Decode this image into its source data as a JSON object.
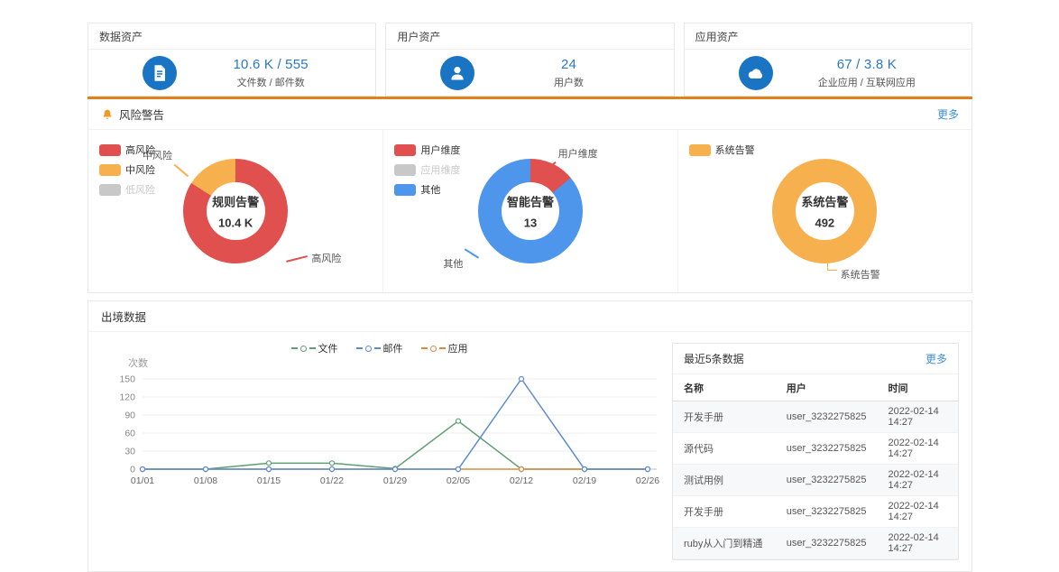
{
  "colors": {
    "accent_blue": "#1a74c4",
    "value_blue": "#2a78c0",
    "link_blue": "#3d8fd4",
    "separator_orange": "#e2801a",
    "bell_orange": "#f39826",
    "risk_red": "#e0504e",
    "risk_orange": "#f6b04e",
    "risk_blue": "#4e95ec",
    "disabled_gray": "#c8c8c8",
    "line_green": "#5f9e73",
    "line_blue": "#5b8bd0",
    "line_orange": "#d98b43"
  },
  "stat_cards": [
    {
      "title": "数据资产",
      "icon": "document-icon",
      "value": "10.6 K / 555",
      "label": "文件数 / 邮件数"
    },
    {
      "title": "用户资产",
      "icon": "user-icon",
      "value": "24",
      "label": "用户数"
    },
    {
      "title": "应用资产",
      "icon": "cloud-icon",
      "value": "67 / 3.8 K",
      "label": "企业应用 / 互联网应用"
    }
  ],
  "risk_section": {
    "title": "风险警告",
    "more_label": "更多",
    "donuts": [
      {
        "center_title": "规则告警",
        "center_value": "10.4 K",
        "legend": [
          {
            "label": "高风险",
            "color": "#e0504e",
            "disabled": false
          },
          {
            "label": "中风险",
            "color": "#f6b04e",
            "disabled": false
          },
          {
            "label": "低风险",
            "color": "#c8c8c8",
            "disabled": true
          }
        ],
        "slices": [
          {
            "name": "高风险",
            "color": "#e0504e",
            "pct": 84
          },
          {
            "name": "中风险",
            "color": "#f6b04e",
            "pct": 16
          }
        ],
        "callout_1": "中风险",
        "callout_2": "高风险"
      },
      {
        "center_title": "智能告警",
        "center_value": "13",
        "legend": [
          {
            "label": "用户维度",
            "color": "#e0504e",
            "disabled": false
          },
          {
            "label": "应用维度",
            "color": "#c8c8c8",
            "disabled": true
          },
          {
            "label": "其他",
            "color": "#4e95ec",
            "disabled": false
          }
        ],
        "slices": [
          {
            "name": "用户维度",
            "color": "#e0504e",
            "pct": 14
          },
          {
            "name": "其他",
            "color": "#4e95ec",
            "pct": 86
          }
        ],
        "callout_1": "用户维度",
        "callout_2": "其他"
      },
      {
        "center_title": "系统告警",
        "center_value": "492",
        "legend": [
          {
            "label": "系统告警",
            "color": "#f6b04e",
            "disabled": false
          }
        ],
        "slices": [
          {
            "name": "系统告警",
            "color": "#f6b04e",
            "pct": 100
          }
        ],
        "callout_1": "",
        "callout_2": "系统告警"
      }
    ]
  },
  "outbound_section": {
    "title": "出境数据",
    "recent_panel": {
      "title": "最近5条数据",
      "more_label": "更多",
      "columns": [
        "名称",
        "用户",
        "时间"
      ],
      "rows": [
        [
          "开发手册",
          "user_3232275825",
          "2022-02-14 14:27"
        ],
        [
          "源代码",
          "user_3232275825",
          "2022-02-14 14:27"
        ],
        [
          "测试用例",
          "user_3232275825",
          "2022-02-14 14:27"
        ],
        [
          "开发手册",
          "user_3232275825",
          "2022-02-14 14:27"
        ],
        [
          "ruby从入门到精通",
          "user_3232275825",
          "2022-02-14 14:27"
        ]
      ]
    }
  },
  "chart_data": [
    {
      "type": "pie",
      "title": "规则告警",
      "center_value": "10.4 K",
      "slices": [
        {
          "name": "高风险",
          "pct": 84,
          "color": "#e0504e"
        },
        {
          "name": "中风险",
          "pct": 16,
          "color": "#f6b04e"
        }
      ],
      "legend": [
        "高风险",
        "中风险",
        "低风险"
      ],
      "legend_disabled": [
        "低风险"
      ]
    },
    {
      "type": "pie",
      "title": "智能告警",
      "center_value": "13",
      "slices": [
        {
          "name": "用户维度",
          "pct": 14,
          "color": "#e0504e"
        },
        {
          "name": "其他",
          "pct": 86,
          "color": "#4e95ec"
        }
      ],
      "legend": [
        "用户维度",
        "应用维度",
        "其他"
      ],
      "legend_disabled": [
        "应用维度"
      ]
    },
    {
      "type": "pie",
      "title": "系统告警",
      "center_value": "492",
      "slices": [
        {
          "name": "系统告警",
          "pct": 100,
          "color": "#f6b04e"
        }
      ],
      "legend": [
        "系统告警"
      ],
      "legend_disabled": []
    },
    {
      "type": "line",
      "title": "出境数据",
      "ylabel": "次数",
      "x": [
        "01/01",
        "01/08",
        "01/15",
        "01/22",
        "01/29",
        "02/05",
        "02/12",
        "02/19",
        "02/26"
      ],
      "ylim": [
        0,
        150
      ],
      "yticks": [
        0,
        30,
        60,
        90,
        120,
        150
      ],
      "grid": true,
      "legend_position": "top",
      "series": [
        {
          "name": "文件",
          "color": "#5f9e73",
          "values": [
            0,
            0,
            10,
            10,
            1,
            80,
            0,
            0,
            0
          ]
        },
        {
          "name": "邮件",
          "color": "#5b8bd0",
          "values": [
            0,
            0,
            0,
            0,
            0,
            0,
            150,
            0,
            0
          ]
        },
        {
          "name": "应用",
          "color": "#d98b43",
          "values": [
            0,
            0,
            0,
            0,
            0,
            0,
            0,
            0,
            0
          ]
        }
      ]
    }
  ]
}
